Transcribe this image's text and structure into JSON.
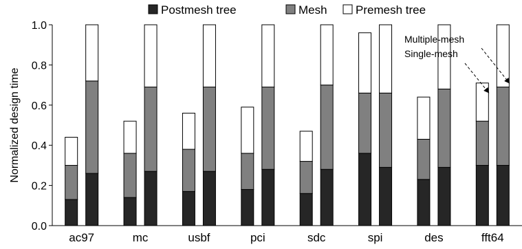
{
  "chart_data": {
    "type": "bar",
    "stacked": true,
    "categories": [
      "ac97",
      "mc",
      "usbf",
      "pci",
      "sdc",
      "spi",
      "des",
      "fft64"
    ],
    "bar_groups": [
      "Single-mesh",
      "Multiple-mesh"
    ],
    "series": [
      {
        "name": "Postmesh tree",
        "color": "#262626",
        "single_mesh": [
          0.13,
          0.14,
          0.17,
          0.18,
          0.16,
          0.36,
          0.23,
          0.3
        ],
        "multiple_mesh": [
          0.26,
          0.27,
          0.27,
          0.28,
          0.28,
          0.29,
          0.29,
          0.3
        ]
      },
      {
        "name": "Mesh",
        "color": "#808080",
        "single_mesh": [
          0.17,
          0.22,
          0.21,
          0.18,
          0.16,
          0.3,
          0.2,
          0.22
        ],
        "multiple_mesh": [
          0.46,
          0.42,
          0.42,
          0.41,
          0.42,
          0.37,
          0.39,
          0.39
        ]
      },
      {
        "name": "Premesh tree",
        "color": "#ffffff",
        "single_mesh": [
          0.14,
          0.16,
          0.18,
          0.23,
          0.15,
          0.3,
          0.21,
          0.19
        ],
        "multiple_mesh": [
          0.28,
          0.31,
          0.31,
          0.31,
          0.3,
          0.34,
          0.32,
          0.31
        ]
      }
    ],
    "ylabel": "Normalized design time",
    "xlabel": "",
    "ylim": [
      0,
      1.0
    ],
    "yticks": [
      "0.0",
      "0.2",
      "0.4",
      "0.6",
      "0.8",
      "1.0"
    ],
    "legend": [
      "Postmesh tree",
      "Mesh",
      "Premesh tree"
    ],
    "legend_position": "top",
    "annotations": [
      "Multiple-mesh",
      "Single-mesh"
    ],
    "grid": false
  }
}
